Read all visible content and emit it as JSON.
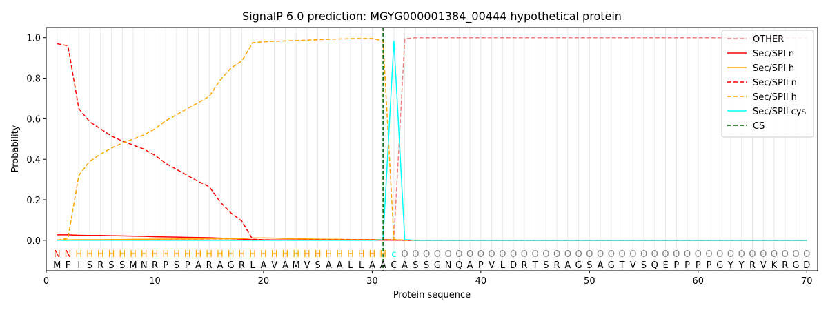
{
  "chart_data": {
    "type": "line",
    "title": "SignalP 6.0 prediction: MGYG000001384_00444 hypothetical protein",
    "xlabel": "Protein sequence",
    "ylabel": "Probability",
    "xlim": [
      0,
      71
    ],
    "ylim": [
      -0.15,
      1.05
    ],
    "xticks": [
      0,
      10,
      20,
      30,
      40,
      50,
      60,
      70
    ],
    "yticks": [
      0.0,
      0.2,
      0.4,
      0.6,
      0.8,
      1.0
    ],
    "ytick_labels": [
      "0.0",
      "0.2",
      "0.4",
      "0.6",
      "0.8",
      "1.0"
    ],
    "grid": "vertical lines at every residue",
    "legend_position": "top-right",
    "cleavage_site": 31,
    "sequence": [
      "M",
      "F",
      "I",
      "S",
      "R",
      "S",
      "S",
      "M",
      "N",
      "R",
      "P",
      "S",
      "P",
      "A",
      "R",
      "A",
      "G",
      "R",
      "L",
      "A",
      "V",
      "A",
      "M",
      "V",
      "S",
      "A",
      "A",
      "L",
      "L",
      "A",
      "A",
      "C",
      "A",
      "S",
      "S",
      "G",
      "N",
      "Q",
      "A",
      "P",
      "V",
      "L",
      "D",
      "R",
      "T",
      "S",
      "R",
      "A",
      "G",
      "S",
      "A",
      "G",
      "T",
      "V",
      "S",
      "Q",
      "E",
      "P",
      "P",
      "P",
      "P",
      "G",
      "Y",
      "Y",
      "R",
      "V",
      "K",
      "R",
      "G",
      "D"
    ],
    "labels": [
      "N",
      "N",
      "H",
      "H",
      "H",
      "H",
      "H",
      "H",
      "H",
      "H",
      "H",
      "H",
      "H",
      "H",
      "H",
      "H",
      "H",
      "H",
      "H",
      "H",
      "H",
      "H",
      "H",
      "H",
      "H",
      "H",
      "H",
      "H",
      "H",
      "H",
      "H",
      "C",
      "O",
      "O",
      "O",
      "O",
      "O",
      "O",
      "O",
      "O",
      "O",
      "O",
      "O",
      "O",
      "O",
      "O",
      "O",
      "O",
      "O",
      "O",
      "O",
      "O",
      "O",
      "O",
      "O",
      "O",
      "O",
      "O",
      "O",
      "O",
      "O",
      "O",
      "O",
      "O",
      "O",
      "O",
      "O",
      "O",
      "O",
      "O"
    ],
    "label_colors": {
      "N": "#ff0000",
      "H": "#ffa500",
      "C": "#00ffff",
      "O": "#808080"
    },
    "x": [
      1,
      2,
      3,
      4,
      5,
      6,
      7,
      8,
      9,
      10,
      11,
      12,
      13,
      14,
      15,
      16,
      17,
      18,
      19,
      20,
      21,
      22,
      23,
      24,
      25,
      26,
      27,
      28,
      29,
      30,
      31,
      32,
      33,
      34,
      35,
      36,
      37,
      38,
      39,
      40,
      41,
      42,
      43,
      44,
      45,
      46,
      47,
      48,
      49,
      50,
      51,
      52,
      53,
      54,
      55,
      56,
      57,
      58,
      59,
      60,
      61,
      62,
      63,
      64,
      65,
      66,
      67,
      68,
      69,
      70
    ],
    "series": [
      {
        "name": "OTHER",
        "color": "#f08080",
        "dash": "dashed",
        "values": [
          0.002,
          0.002,
          0.002,
          0.002,
          0.002,
          0.002,
          0.002,
          0.002,
          0.002,
          0.002,
          0.002,
          0.002,
          0.002,
          0.002,
          0.002,
          0.002,
          0.002,
          0.002,
          0.002,
          0.002,
          0.002,
          0.002,
          0.002,
          0.002,
          0.002,
          0.002,
          0.002,
          0.002,
          0.002,
          0.002,
          0.003,
          0.005,
          0.995,
          1.0,
          1.0,
          1.0,
          1.0,
          1.0,
          1.0,
          1.0,
          1.0,
          1.0,
          1.0,
          1.0,
          1.0,
          1.0,
          1.0,
          1.0,
          1.0,
          1.0,
          1.0,
          1.0,
          1.0,
          1.0,
          1.0,
          1.0,
          1.0,
          1.0,
          1.0,
          1.0,
          1.0,
          1.0,
          1.0,
          1.0,
          1.0,
          1.0,
          1.0,
          1.0,
          1.0,
          1.0
        ]
      },
      {
        "name": "Sec/SPI n",
        "color": "#ff0000",
        "dash": "solid",
        "values": [
          0.027,
          0.027,
          0.025,
          0.024,
          0.024,
          0.023,
          0.022,
          0.021,
          0.02,
          0.018,
          0.017,
          0.016,
          0.015,
          0.014,
          0.013,
          0.011,
          0.009,
          0.006,
          0.003,
          0.002,
          0.002,
          0.002,
          0.001,
          0.001,
          0.001,
          0.001,
          0.001,
          0.001,
          0.001,
          0.001,
          0.001,
          0.001,
          0.0,
          0.0,
          0.0,
          0.0,
          0.0,
          0.0,
          0.0,
          0.0,
          0.0,
          0.0,
          0.0,
          0.0,
          0.0,
          0.0,
          0.0,
          0.0,
          0.0,
          0.0,
          0.0,
          0.0,
          0.0,
          0.0,
          0.0,
          0.0,
          0.0,
          0.0,
          0.0,
          0.0,
          0.0,
          0.0,
          0.0,
          0.0,
          0.0,
          0.0,
          0.0,
          0.0,
          0.0,
          0.0
        ]
      },
      {
        "name": "Sec/SPI h",
        "color": "#ffa500",
        "dash": "solid",
        "values": [
          0.001,
          0.002,
          0.003,
          0.003,
          0.003,
          0.004,
          0.004,
          0.005,
          0.005,
          0.006,
          0.006,
          0.007,
          0.007,
          0.007,
          0.008,
          0.008,
          0.008,
          0.009,
          0.012,
          0.012,
          0.011,
          0.009,
          0.008,
          0.007,
          0.006,
          0.005,
          0.005,
          0.004,
          0.004,
          0.004,
          0.003,
          0.002,
          0.001,
          0.0,
          0.0,
          0.0,
          0.0,
          0.0,
          0.0,
          0.0,
          0.0,
          0.0,
          0.0,
          0.0,
          0.0,
          0.0,
          0.0,
          0.0,
          0.0,
          0.0,
          0.0,
          0.0,
          0.0,
          0.0,
          0.0,
          0.0,
          0.0,
          0.0,
          0.0,
          0.0,
          0.0,
          0.0,
          0.0,
          0.0,
          0.0,
          0.0,
          0.0,
          0.0,
          0.0,
          0.0
        ]
      },
      {
        "name": "Sec/SPII n",
        "color": "#ff0000",
        "dash": "dashed",
        "values": [
          0.97,
          0.96,
          0.65,
          0.585,
          0.55,
          0.515,
          0.49,
          0.47,
          0.45,
          0.42,
          0.38,
          0.35,
          0.32,
          0.29,
          0.265,
          0.19,
          0.135,
          0.095,
          0.005,
          0.003,
          0.002,
          0.002,
          0.002,
          0.002,
          0.002,
          0.002,
          0.002,
          0.002,
          0.002,
          0.002,
          0.002,
          0.001,
          0.0,
          0.0,
          0.0,
          0.0,
          0.0,
          0.0,
          0.0,
          0.0,
          0.0,
          0.0,
          0.0,
          0.0,
          0.0,
          0.0,
          0.0,
          0.0,
          0.0,
          0.0,
          0.0,
          0.0,
          0.0,
          0.0,
          0.0,
          0.0,
          0.0,
          0.0,
          0.0,
          0.0,
          0.0,
          0.0,
          0.0,
          0.0,
          0.0,
          0.0,
          0.0,
          0.0,
          0.0,
          0.0
        ]
      },
      {
        "name": "Sec/SPII h",
        "color": "#ffa500",
        "dash": "dashed",
        "values": [
          0.001,
          0.01,
          0.32,
          0.39,
          0.425,
          0.455,
          0.48,
          0.5,
          0.52,
          0.55,
          0.59,
          0.62,
          0.65,
          0.68,
          0.71,
          0.79,
          0.85,
          0.885,
          0.975,
          0.98,
          0.982,
          0.984,
          0.986,
          0.988,
          0.99,
          0.992,
          0.994,
          0.995,
          0.996,
          0.996,
          0.985,
          0.005,
          0.0,
          0.0,
          0.0,
          0.0,
          0.0,
          0.0,
          0.0,
          0.0,
          0.0,
          0.0,
          0.0,
          0.0,
          0.0,
          0.0,
          0.0,
          0.0,
          0.0,
          0.0,
          0.0,
          0.0,
          0.0,
          0.0,
          0.0,
          0.0,
          0.0,
          0.0,
          0.0,
          0.0,
          0.0,
          0.0,
          0.0,
          0.0,
          0.0,
          0.0,
          0.0,
          0.0,
          0.0,
          0.0
        ]
      },
      {
        "name": "Sec/SPII cys",
        "color": "#00ffff",
        "dash": "solid",
        "values": [
          0.0,
          0.0,
          0.0,
          0.0,
          0.0,
          0.0,
          0.0,
          0.0,
          0.0,
          0.0,
          0.0,
          0.0,
          0.0,
          0.0,
          0.0,
          0.0,
          0.0,
          0.0,
          0.0,
          0.0,
          0.0,
          0.0,
          0.0,
          0.0,
          0.0,
          0.0,
          0.0,
          0.0,
          0.0,
          0.0,
          0.003,
          0.985,
          0.004,
          0.0,
          0.0,
          0.0,
          0.0,
          0.0,
          0.0,
          0.0,
          0.0,
          0.0,
          0.0,
          0.0,
          0.0,
          0.0,
          0.0,
          0.0,
          0.0,
          0.0,
          0.0,
          0.0,
          0.0,
          0.0,
          0.0,
          0.0,
          0.0,
          0.0,
          0.0,
          0.0,
          0.0,
          0.0,
          0.0,
          0.0,
          0.0,
          0.0,
          0.0,
          0.0,
          0.0,
          0.0
        ]
      }
    ],
    "cs_legend": {
      "name": "CS",
      "color": "#006400",
      "dash": "dashed"
    }
  }
}
